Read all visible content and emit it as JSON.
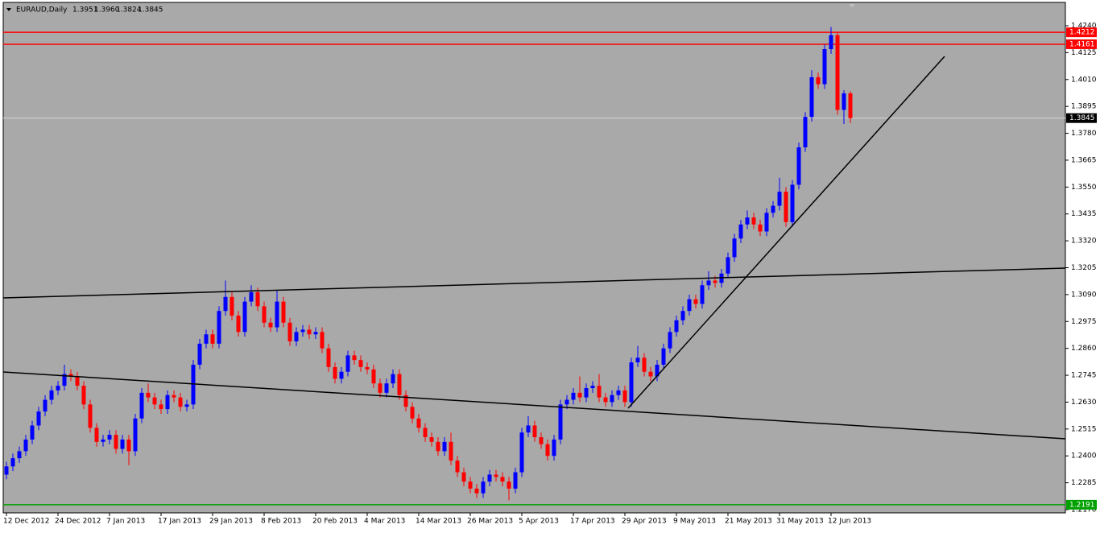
{
  "chart_data": {
    "type": "candlestick",
    "symbol": "EURAUD,Daily",
    "header_values": [
      "1.3951",
      "1.3960",
      "1.3824",
      "1.3845"
    ],
    "up_color": "#0000ff",
    "down_color": "#ff0000",
    "ylim": [
      1.217,
      1.4333
    ],
    "yticks": [
      {
        "value": 1.424,
        "label": "1.4240"
      },
      {
        "value": 1.4125,
        "label": "1.4125"
      },
      {
        "value": 1.401,
        "label": "1.4010"
      },
      {
        "value": 1.3895,
        "label": "1.3895"
      },
      {
        "value": 1.378,
        "label": "1.3780"
      },
      {
        "value": 1.3665,
        "label": "1.3665"
      },
      {
        "value": 1.355,
        "label": "1.3550"
      },
      {
        "value": 1.3435,
        "label": "1.3435"
      },
      {
        "value": 1.332,
        "label": "1.3320"
      },
      {
        "value": 1.3205,
        "label": "1.3205"
      },
      {
        "value": 1.309,
        "label": "1.3090"
      },
      {
        "value": 1.2975,
        "label": "1.2975"
      },
      {
        "value": 1.286,
        "label": "1.2860"
      },
      {
        "value": 1.2745,
        "label": "1.2745"
      },
      {
        "value": 1.263,
        "label": "1.2630"
      },
      {
        "value": 1.2515,
        "label": "1.2515"
      },
      {
        "value": 1.24,
        "label": "1.2400"
      },
      {
        "value": 1.2285,
        "label": "1.2285"
      },
      {
        "value": 1.217,
        "label": "1.2170"
      }
    ],
    "grid": false,
    "hlines": [
      {
        "value": 1.4212,
        "label": "1.4212",
        "color": "#ff0000"
      },
      {
        "value": 1.4161,
        "label": "1.4161",
        "color": "#ff0000"
      },
      {
        "value": 1.3845,
        "label": "1.3845",
        "color": "#000000",
        "line_color": "#c8c8c8"
      },
      {
        "value": 1.2191,
        "label": "1.2191",
        "color": "#00a000"
      }
    ],
    "x_labels": [
      "12 Dec 2012",
      "24 Dec 2012",
      "7 Jan 2013",
      "17 Jan 2013",
      "29 Jan 2013",
      "8 Feb 2013",
      "20 Feb 2013",
      "4 Mar 2013",
      "14 Mar 2013",
      "26 Mar 2013",
      "5 Apr 2013",
      "17 Apr 2013",
      "29 Apr 2013",
      "9 May 2013",
      "21 May 2013",
      "31 May 2013",
      "12 Jun 2013"
    ],
    "candles": [
      [
        1.232,
        1.2375,
        1.23,
        1.2355
      ],
      [
        1.2355,
        1.241,
        1.2335,
        1.239
      ],
      [
        1.239,
        1.244,
        1.237,
        1.242
      ],
      [
        1.242,
        1.249,
        1.24,
        1.247
      ],
      [
        1.247,
        1.255,
        1.245,
        1.253
      ],
      [
        1.253,
        1.261,
        1.251,
        1.259
      ],
      [
        1.259,
        1.266,
        1.257,
        1.264
      ],
      [
        1.264,
        1.27,
        1.262,
        1.268
      ],
      [
        1.268,
        1.272,
        1.266,
        1.27
      ],
      [
        1.27,
        1.279,
        1.268,
        1.275
      ],
      [
        1.275,
        1.277,
        1.272,
        1.274
      ],
      [
        1.274,
        1.276,
        1.268,
        1.27
      ],
      [
        1.27,
        1.272,
        1.26,
        1.262
      ],
      [
        1.262,
        1.264,
        1.25,
        1.252
      ],
      [
        1.252,
        1.254,
        1.244,
        1.246
      ],
      [
        1.246,
        1.249,
        1.244,
        1.247
      ],
      [
        1.247,
        1.251,
        1.245,
        1.249
      ],
      [
        1.249,
        1.251,
        1.241,
        1.243
      ],
      [
        1.243,
        1.249,
        1.241,
        1.247
      ],
      [
        1.247,
        1.249,
        1.236,
        1.242
      ],
      [
        1.242,
        1.258,
        1.24,
        1.256
      ],
      [
        1.256,
        1.269,
        1.254,
        1.267
      ],
      [
        1.267,
        1.271,
        1.263,
        1.265
      ],
      [
        1.265,
        1.267,
        1.26,
        1.262
      ],
      [
        1.262,
        1.264,
        1.258,
        1.26
      ],
      [
        1.26,
        1.268,
        1.258,
        1.266
      ],
      [
        1.266,
        1.268,
        1.263,
        1.265
      ],
      [
        1.265,
        1.267,
        1.259,
        1.261
      ],
      [
        1.261,
        1.264,
        1.259,
        1.262
      ],
      [
        1.262,
        1.281,
        1.26,
        1.279
      ],
      [
        1.279,
        1.29,
        1.277,
        1.288
      ],
      [
        1.288,
        1.294,
        1.286,
        1.292
      ],
      [
        1.292,
        1.294,
        1.286,
        1.288
      ],
      [
        1.288,
        1.304,
        1.286,
        1.302
      ],
      [
        1.302,
        1.315,
        1.3,
        1.308
      ],
      [
        1.308,
        1.31,
        1.298,
        1.3
      ],
      [
        1.3,
        1.302,
        1.291,
        1.293
      ],
      [
        1.293,
        1.308,
        1.291,
        1.306
      ],
      [
        1.306,
        1.313,
        1.304,
        1.31
      ],
      [
        1.31,
        1.312,
        1.302,
        1.304
      ],
      [
        1.304,
        1.306,
        1.295,
        1.297
      ],
      [
        1.297,
        1.299,
        1.293,
        1.295
      ],
      [
        1.295,
        1.311,
        1.293,
        1.306
      ],
      [
        1.306,
        1.308,
        1.295,
        1.297
      ],
      [
        1.297,
        1.299,
        1.287,
        1.289
      ],
      [
        1.289,
        1.295,
        1.287,
        1.293
      ],
      [
        1.293,
        1.296,
        1.291,
        1.294
      ],
      [
        1.294,
        1.296,
        1.29,
        1.292
      ],
      [
        1.292,
        1.295,
        1.29,
        1.293
      ],
      [
        1.293,
        1.295,
        1.284,
        1.286
      ],
      [
        1.286,
        1.288,
        1.276,
        1.278
      ],
      [
        1.278,
        1.28,
        1.271,
        1.273
      ],
      [
        1.273,
        1.278,
        1.271,
        1.276
      ],
      [
        1.276,
        1.285,
        1.274,
        1.283
      ],
      [
        1.283,
        1.285,
        1.279,
        1.281
      ],
      [
        1.281,
        1.283,
        1.276,
        1.278
      ],
      [
        1.278,
        1.28,
        1.275,
        1.277
      ],
      [
        1.277,
        1.279,
        1.269,
        1.271
      ],
      [
        1.271,
        1.273,
        1.265,
        1.267
      ],
      [
        1.267,
        1.273,
        1.265,
        1.271
      ],
      [
        1.271,
        1.277,
        1.269,
        1.275
      ],
      [
        1.275,
        1.277,
        1.264,
        1.266
      ],
      [
        1.266,
        1.268,
        1.259,
        1.261
      ],
      [
        1.261,
        1.263,
        1.254,
        1.256
      ],
      [
        1.256,
        1.258,
        1.25,
        1.252
      ],
      [
        1.252,
        1.254,
        1.246,
        1.248
      ],
      [
        1.248,
        1.25,
        1.244,
        1.246
      ],
      [
        1.246,
        1.248,
        1.24,
        1.242
      ],
      [
        1.242,
        1.248,
        1.24,
        1.246
      ],
      [
        1.246,
        1.25,
        1.236,
        1.238
      ],
      [
        1.238,
        1.24,
        1.231,
        1.233
      ],
      [
        1.233,
        1.235,
        1.227,
        1.229
      ],
      [
        1.229,
        1.231,
        1.224,
        1.226
      ],
      [
        1.226,
        1.228,
        1.222,
        1.224
      ],
      [
        1.224,
        1.231,
        1.222,
        1.229
      ],
      [
        1.229,
        1.234,
        1.227,
        1.232
      ],
      [
        1.232,
        1.234,
        1.229,
        1.231
      ],
      [
        1.231,
        1.233,
        1.227,
        1.229
      ],
      [
        1.229,
        1.231,
        1.221,
        1.226
      ],
      [
        1.226,
        1.235,
        1.224,
        1.233
      ],
      [
        1.233,
        1.252,
        1.231,
        1.25
      ],
      [
        1.25,
        1.257,
        1.248,
        1.253
      ],
      [
        1.253,
        1.255,
        1.246,
        1.248
      ],
      [
        1.248,
        1.25,
        1.243,
        1.245
      ],
      [
        1.245,
        1.247,
        1.238,
        1.24
      ],
      [
        1.24,
        1.249,
        1.238,
        1.247
      ],
      [
        1.247,
        1.264,
        1.245,
        1.262
      ],
      [
        1.262,
        1.266,
        1.26,
        1.264
      ],
      [
        1.264,
        1.269,
        1.262,
        1.267
      ],
      [
        1.267,
        1.274,
        1.263,
        1.265
      ],
      [
        1.265,
        1.271,
        1.263,
        1.269
      ],
      [
        1.269,
        1.272,
        1.267,
        1.27
      ],
      [
        1.27,
        1.275,
        1.263,
        1.265
      ],
      [
        1.265,
        1.267,
        1.261,
        1.263
      ],
      [
        1.263,
        1.268,
        1.261,
        1.266
      ],
      [
        1.266,
        1.27,
        1.264,
        1.268
      ],
      [
        1.268,
        1.27,
        1.261,
        1.263
      ],
      [
        1.263,
        1.282,
        1.261,
        1.28
      ],
      [
        1.28,
        1.287,
        1.278,
        1.282
      ],
      [
        1.282,
        1.284,
        1.274,
        1.276
      ],
      [
        1.276,
        1.278,
        1.272,
        1.274
      ],
      [
        1.274,
        1.281,
        1.272,
        1.279
      ],
      [
        1.279,
        1.288,
        1.277,
        1.286
      ],
      [
        1.286,
        1.295,
        1.284,
        1.293
      ],
      [
        1.293,
        1.3,
        1.291,
        1.298
      ],
      [
        1.298,
        1.304,
        1.296,
        1.302
      ],
      [
        1.302,
        1.309,
        1.3,
        1.307
      ],
      [
        1.307,
        1.309,
        1.303,
        1.305
      ],
      [
        1.305,
        1.315,
        1.303,
        1.313
      ],
      [
        1.313,
        1.319,
        1.311,
        1.315
      ],
      [
        1.315,
        1.317,
        1.312,
        1.314
      ],
      [
        1.314,
        1.32,
        1.312,
        1.318
      ],
      [
        1.318,
        1.327,
        1.316,
        1.325
      ],
      [
        1.325,
        1.335,
        1.323,
        1.333
      ],
      [
        1.333,
        1.341,
        1.331,
        1.339
      ],
      [
        1.339,
        1.345,
        1.337,
        1.342
      ],
      [
        1.342,
        1.344,
        1.337,
        1.339
      ],
      [
        1.339,
        1.341,
        1.334,
        1.336
      ],
      [
        1.336,
        1.346,
        1.334,
        1.344
      ],
      [
        1.344,
        1.349,
        1.342,
        1.347
      ],
      [
        1.347,
        1.359,
        1.345,
        1.353
      ],
      [
        1.353,
        1.355,
        1.338,
        1.34
      ],
      [
        1.34,
        1.358,
        1.338,
        1.356
      ],
      [
        1.356,
        1.374,
        1.354,
        1.372
      ],
      [
        1.372,
        1.387,
        1.37,
        1.385
      ],
      [
        1.385,
        1.405,
        1.383,
        1.402
      ],
      [
        1.402,
        1.404,
        1.397,
        1.399
      ],
      [
        1.399,
        1.416,
        1.397,
        1.414
      ],
      [
        1.414,
        1.4235,
        1.412,
        1.42
      ],
      [
        1.42,
        1.4215,
        1.386,
        1.388
      ],
      [
        1.388,
        1.3965,
        1.382,
        1.3951
      ],
      [
        1.3951,
        1.396,
        1.3824,
        1.3845
      ]
    ]
  }
}
